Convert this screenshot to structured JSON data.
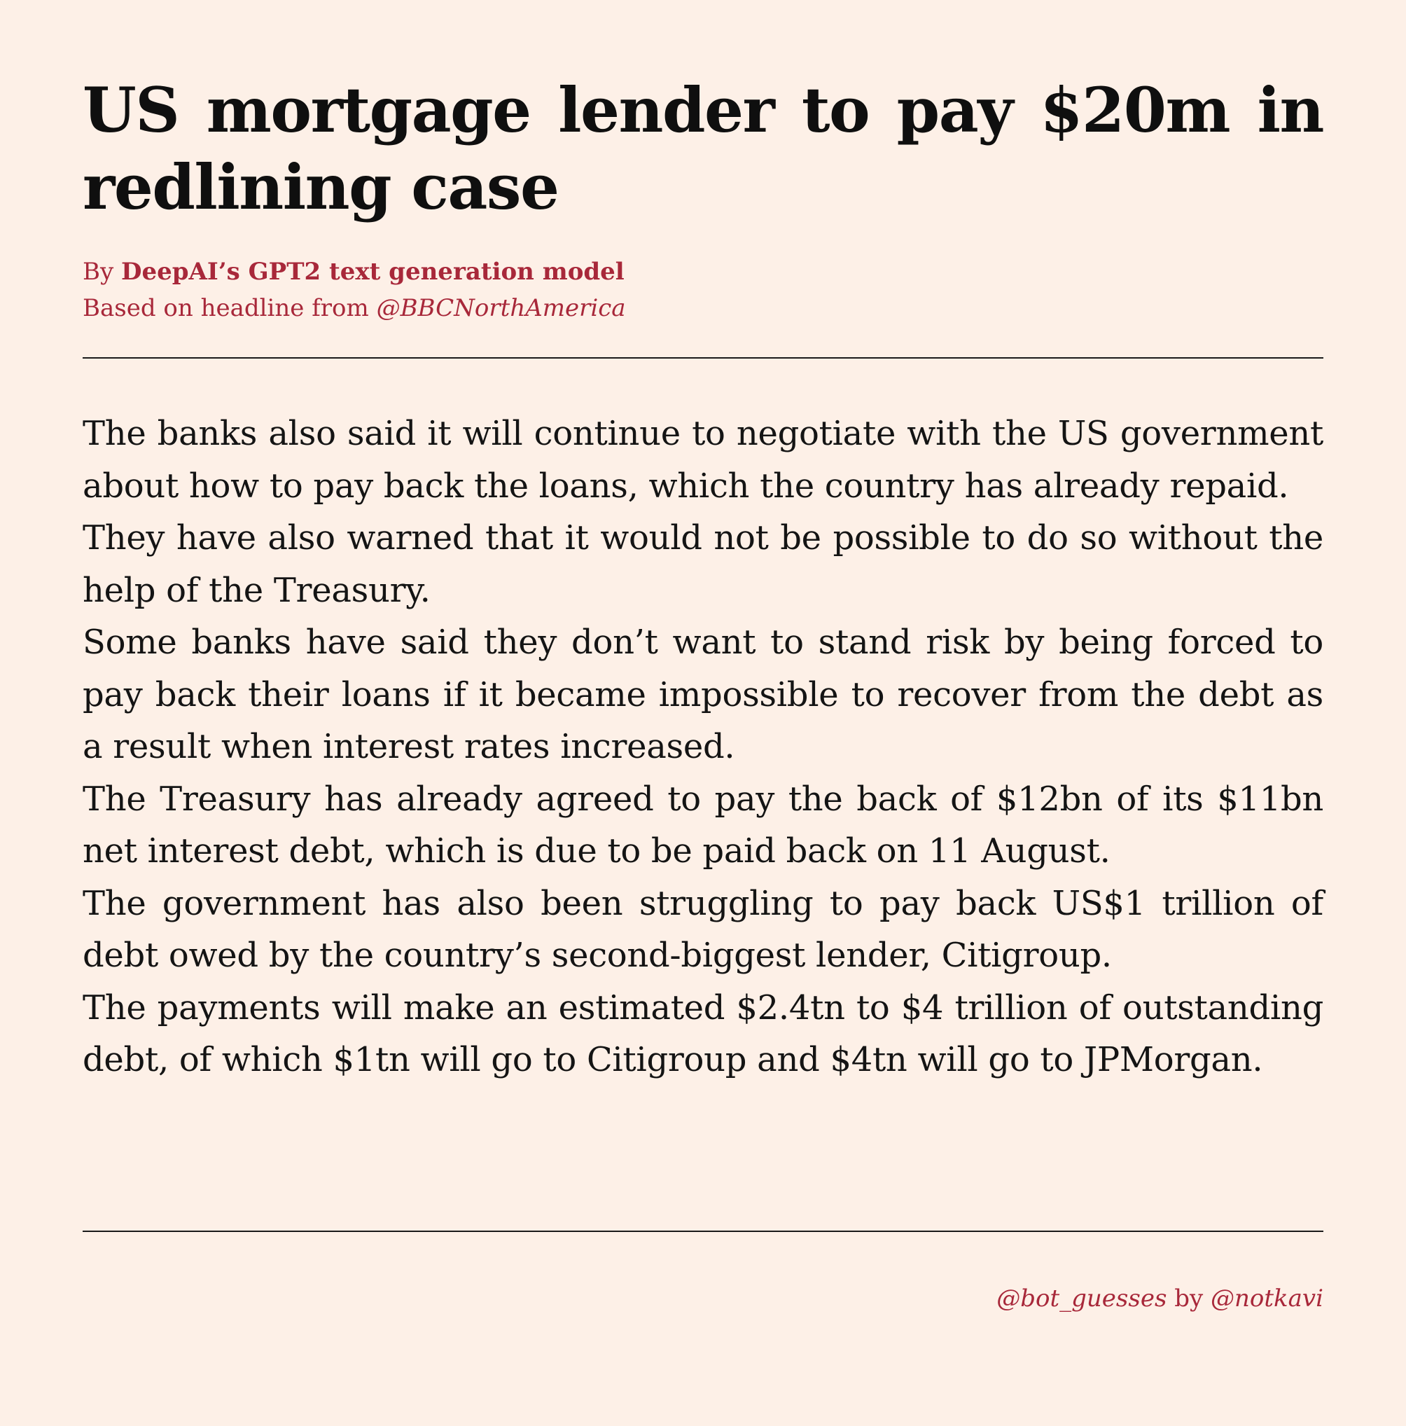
{
  "headline": "US mortgage lender to pay $20m in redlining case",
  "byline": {
    "prefix": "By ",
    "author": "DeepAI’s GPT2 text generation model",
    "based_on": "Based on headline from ",
    "source": "@BBCNorthAmerica"
  },
  "article": {
    "paragraphs": [
      "The banks also said it will continue to negotiate with the US gov­ernment about how to pay back the loans, which the country has already repaid.",
      "They have also warned that it would not be possible to do so without the help of the Treasury.",
      "Some banks have said they don’t want to stand risk by being forced to pay back their loans if it became impossible to recover from the debt as a result when interest rates increased.",
      "The Treasury has already agreed to pay the back of $12bn of its $11bn net interest debt, which is due to be paid back on 11 August.",
      "The government has also been struggling to pay back US$1 trillion of debt owed by the country’s second-biggest lender, Citigroup.",
      "The payments will make an estimated $2.4tn to $4 trillion of out­standing debt, of which $1tn will go to Citigroup and $4tn will go to JPMorgan."
    ]
  },
  "footer": {
    "account": "@bot_guesses",
    "by": " by ",
    "author": "@notkavi"
  },
  "colors": {
    "background": "#fdf0e7",
    "accent": "#a8283a",
    "text": "#111111"
  }
}
